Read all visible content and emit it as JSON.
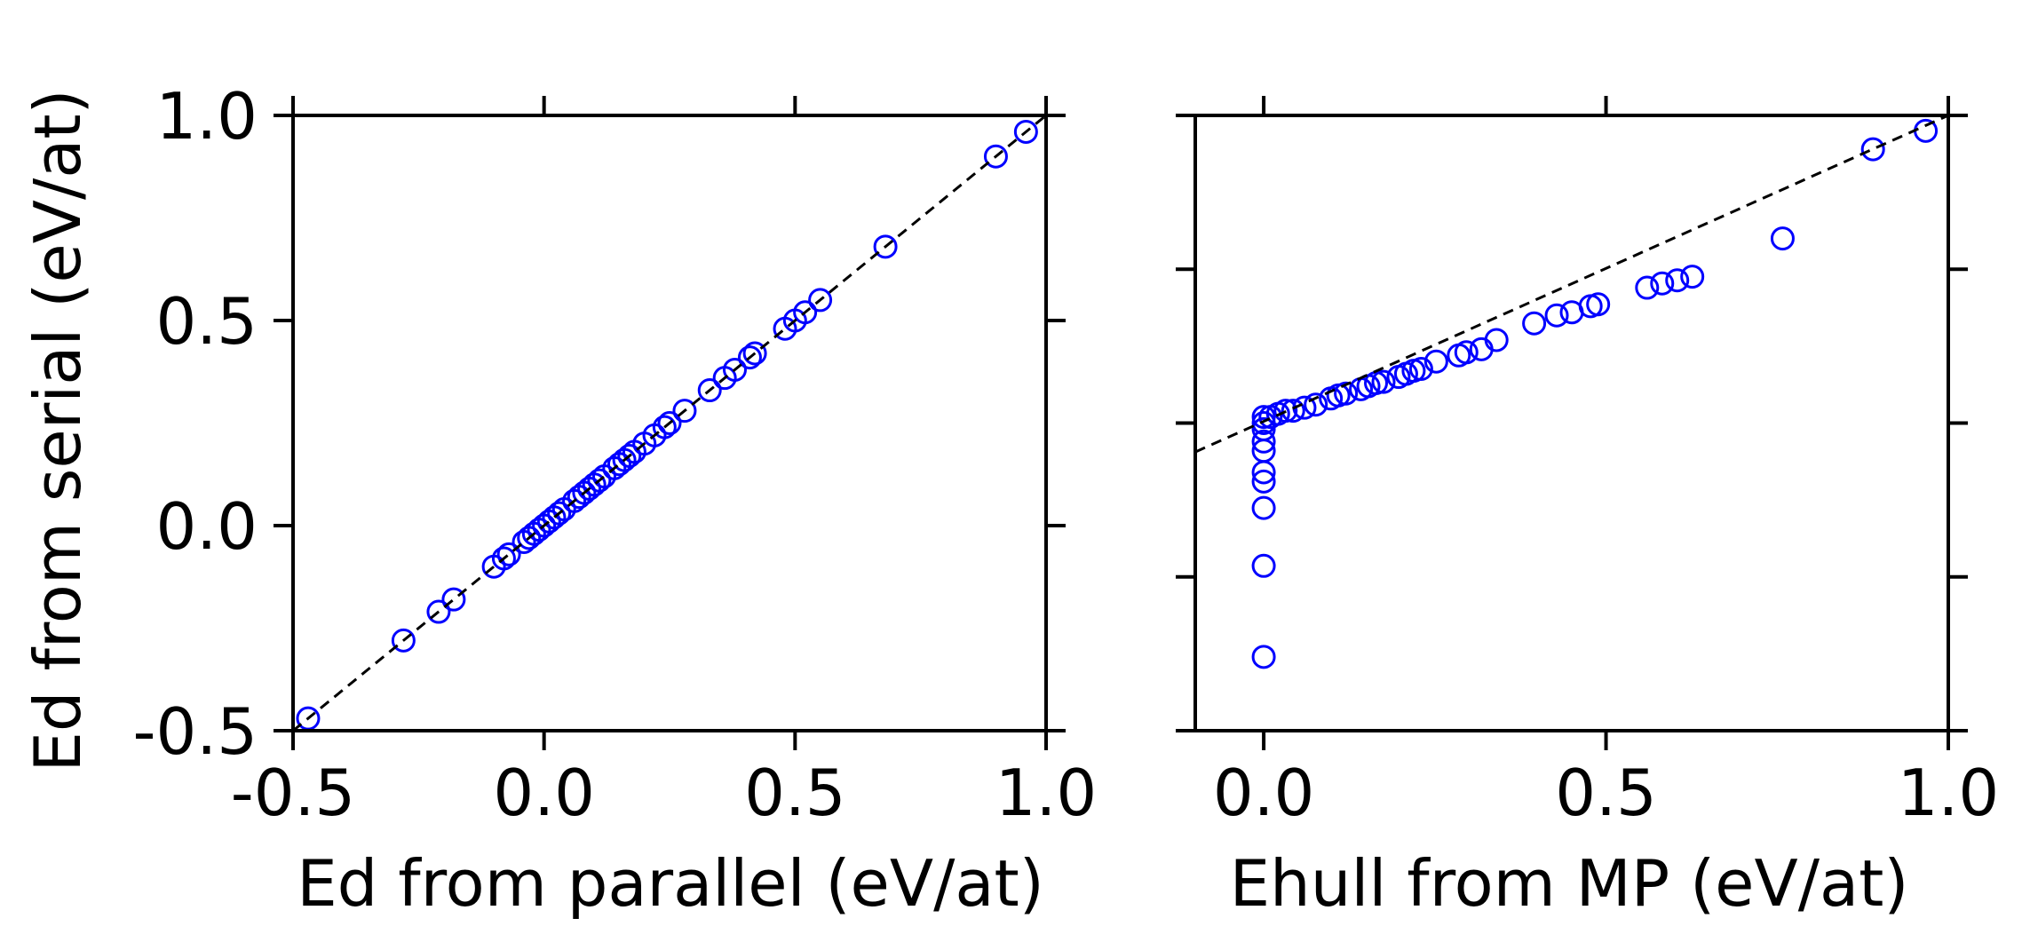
{
  "colors": {
    "marker": "#0000ff",
    "guide_line": "#000000",
    "axes": "#000000",
    "background": "#ffffff"
  },
  "chart_data": [
    {
      "type": "scatter",
      "xlabel": "Ed from parallel (eV/at)",
      "ylabel": "Ed from serial (eV/at)",
      "xlim": [
        -0.5,
        1.0
      ],
      "ylim": [
        -0.5,
        1.0
      ],
      "xticks": [
        -0.5,
        0.0,
        0.5,
        1.0
      ],
      "xtick_labels": [
        "-0.5",
        "0.0",
        "0.5",
        "1.0"
      ],
      "yticks": [
        -0.5,
        0.0,
        0.5,
        1.0
      ],
      "ytick_labels": [
        "-0.5",
        "0.0",
        "0.5",
        "1.0"
      ],
      "grid": false,
      "marker": "open-circle",
      "reference_line": {
        "style": "dashed",
        "points": [
          [
            -0.5,
            -0.5
          ],
          [
            1.0,
            1.0
          ]
        ]
      },
      "points": [
        [
          -0.47,
          -0.47
        ],
        [
          -0.28,
          -0.28
        ],
        [
          -0.21,
          -0.21
        ],
        [
          -0.18,
          -0.18
        ],
        [
          -0.1,
          -0.1
        ],
        [
          -0.08,
          -0.08
        ],
        [
          -0.07,
          -0.07
        ],
        [
          -0.04,
          -0.04
        ],
        [
          -0.03,
          -0.03
        ],
        [
          -0.02,
          -0.02
        ],
        [
          -0.01,
          -0.01
        ],
        [
          0.0,
          0.0
        ],
        [
          0.01,
          0.01
        ],
        [
          0.02,
          0.02
        ],
        [
          0.03,
          0.03
        ],
        [
          0.04,
          0.04
        ],
        [
          0.06,
          0.06
        ],
        [
          0.07,
          0.07
        ],
        [
          0.08,
          0.08
        ],
        [
          0.09,
          0.09
        ],
        [
          0.1,
          0.1
        ],
        [
          0.11,
          0.11
        ],
        [
          0.12,
          0.12
        ],
        [
          0.14,
          0.14
        ],
        [
          0.15,
          0.15
        ],
        [
          0.16,
          0.16
        ],
        [
          0.17,
          0.17
        ],
        [
          0.18,
          0.18
        ],
        [
          0.2,
          0.2
        ],
        [
          0.22,
          0.22
        ],
        [
          0.24,
          0.24
        ],
        [
          0.25,
          0.25
        ],
        [
          0.28,
          0.28
        ],
        [
          0.33,
          0.33
        ],
        [
          0.36,
          0.36
        ],
        [
          0.38,
          0.38
        ],
        [
          0.41,
          0.41
        ],
        [
          0.42,
          0.42
        ],
        [
          0.48,
          0.48
        ],
        [
          0.5,
          0.5
        ],
        [
          0.52,
          0.52
        ],
        [
          0.55,
          0.55
        ],
        [
          0.68,
          0.68
        ],
        [
          0.9,
          0.9
        ],
        [
          0.96,
          0.96
        ]
      ]
    },
    {
      "type": "scatter",
      "xlabel": "Ehull from MP (eV/at)",
      "ylabel": "",
      "xlim": [
        -0.1,
        1.0
      ],
      "ylim": [
        -0.5,
        1.0
      ],
      "xticks": [
        0.0,
        0.5,
        1.0
      ],
      "xtick_labels": [
        "0.0",
        "0.5",
        "1.0"
      ],
      "yticks": [
        -0.5,
        0.0,
        0.5,
        1.0
      ],
      "ytick_labels": [],
      "shared_y_with_left": false,
      "y_tick_positions_fraction": [
        0.0,
        0.25,
        0.5,
        0.75,
        1.0
      ],
      "grid": false,
      "marker": "open-circle",
      "reference_line": {
        "style": "dashed",
        "points_fraction_of_axes": [
          [
            0.0,
            0.453
          ],
          [
            1.0,
            1.0
          ]
        ]
      },
      "points_fraction_of_axes": [
        [
          0.0909,
          0.12
        ],
        [
          0.0909,
          0.268
        ],
        [
          0.0909,
          0.362
        ],
        [
          0.0909,
          0.405
        ],
        [
          0.0909,
          0.42
        ],
        [
          0.0909,
          0.455
        ],
        [
          0.0909,
          0.47
        ],
        [
          0.0909,
          0.49
        ],
        [
          0.0909,
          0.5
        ],
        [
          0.0909,
          0.51
        ],
        [
          0.1,
          0.51
        ],
        [
          0.11,
          0.515
        ],
        [
          0.12,
          0.52
        ],
        [
          0.13,
          0.52
        ],
        [
          0.145,
          0.525
        ],
        [
          0.16,
          0.53
        ],
        [
          0.18,
          0.54
        ],
        [
          0.19,
          0.545
        ],
        [
          0.2,
          0.548
        ],
        [
          0.22,
          0.555
        ],
        [
          0.23,
          0.56
        ],
        [
          0.24,
          0.565
        ],
        [
          0.25,
          0.567
        ],
        [
          0.27,
          0.575
        ],
        [
          0.28,
          0.58
        ],
        [
          0.29,
          0.585
        ],
        [
          0.3,
          0.588
        ],
        [
          0.32,
          0.6
        ],
        [
          0.35,
          0.61
        ],
        [
          0.36,
          0.615
        ],
        [
          0.38,
          0.62
        ],
        [
          0.4,
          0.635
        ],
        [
          0.45,
          0.662
        ],
        [
          0.48,
          0.675
        ],
        [
          0.5,
          0.68
        ],
        [
          0.525,
          0.69
        ],
        [
          0.535,
          0.693
        ],
        [
          0.6,
          0.72
        ],
        [
          0.62,
          0.727
        ],
        [
          0.64,
          0.732
        ],
        [
          0.66,
          0.738
        ],
        [
          0.78,
          0.8
        ],
        [
          0.9,
          0.945
        ],
        [
          0.97,
          0.975
        ]
      ]
    }
  ]
}
